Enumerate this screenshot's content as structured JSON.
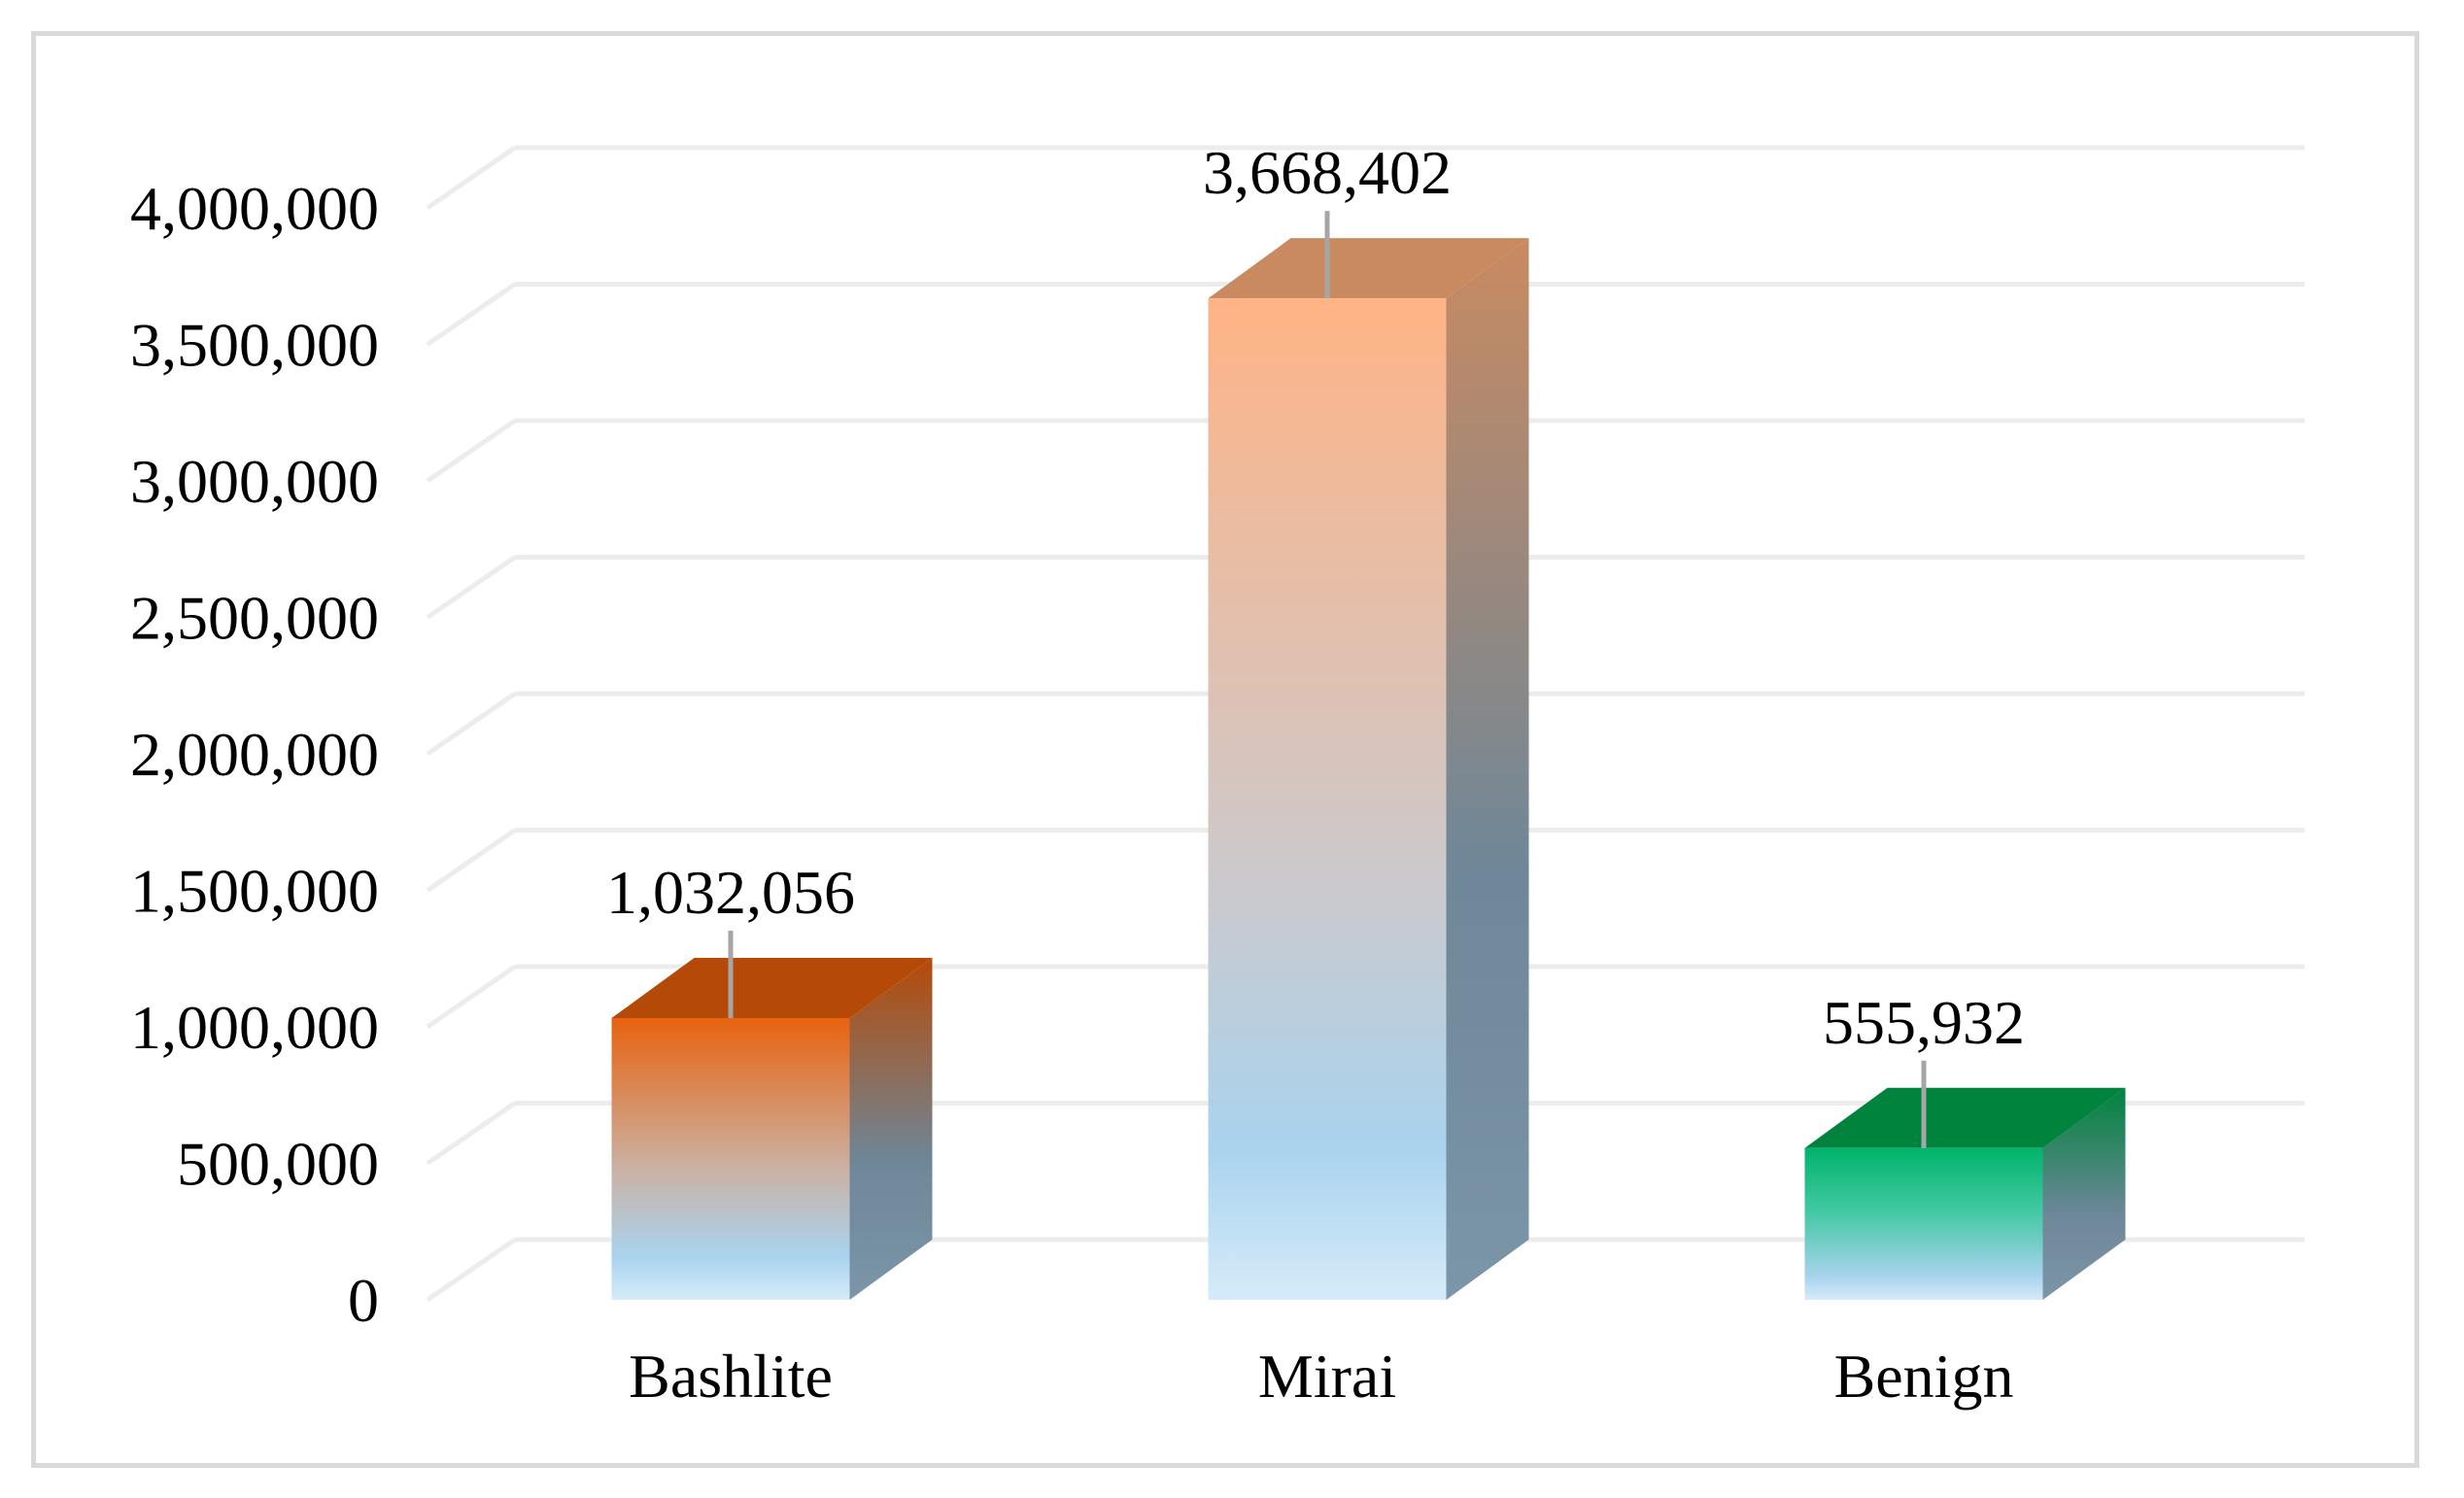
{
  "chart_data": {
    "type": "bar",
    "style": "3d-column",
    "title": "",
    "xlabel": "",
    "ylabel": "",
    "categories": [
      "Bashlite",
      "Mirai",
      "Benign"
    ],
    "values": [
      1032056,
      3668402,
      555932
    ],
    "data_labels": [
      "1,032,056",
      "3,668,402",
      "555,932"
    ],
    "ylim": [
      0,
      4000000
    ],
    "yticks": [
      0,
      500000,
      1000000,
      1500000,
      2000000,
      2500000,
      3000000,
      3500000,
      4000000
    ],
    "ytick_labels": [
      "0",
      "500,000",
      "1,000,000",
      "1,500,000",
      "2,000,000",
      "2,500,000",
      "3,000,000",
      "3,500,000",
      "4,000,000"
    ],
    "grid": true,
    "legend": "none",
    "colors": {
      "Bashlite": {
        "top": "#e8620f",
        "mid": "#c9b3a8",
        "bottom": "#a9d3ee",
        "cap": "#b54a08"
      },
      "Mirai": {
        "top": "#ffb385",
        "mid": "#cfc8c8",
        "bottom": "#a9d3ee",
        "cap": "#c98a60"
      },
      "Benign": {
        "top": "#00b36b",
        "mid": "#3fc8a0",
        "bottom": "#a9d3ee",
        "cap": "#00843d"
      },
      "gridline": "#ececec",
      "leader": "#a6a6a6",
      "frame": "#d9d9d9"
    }
  }
}
